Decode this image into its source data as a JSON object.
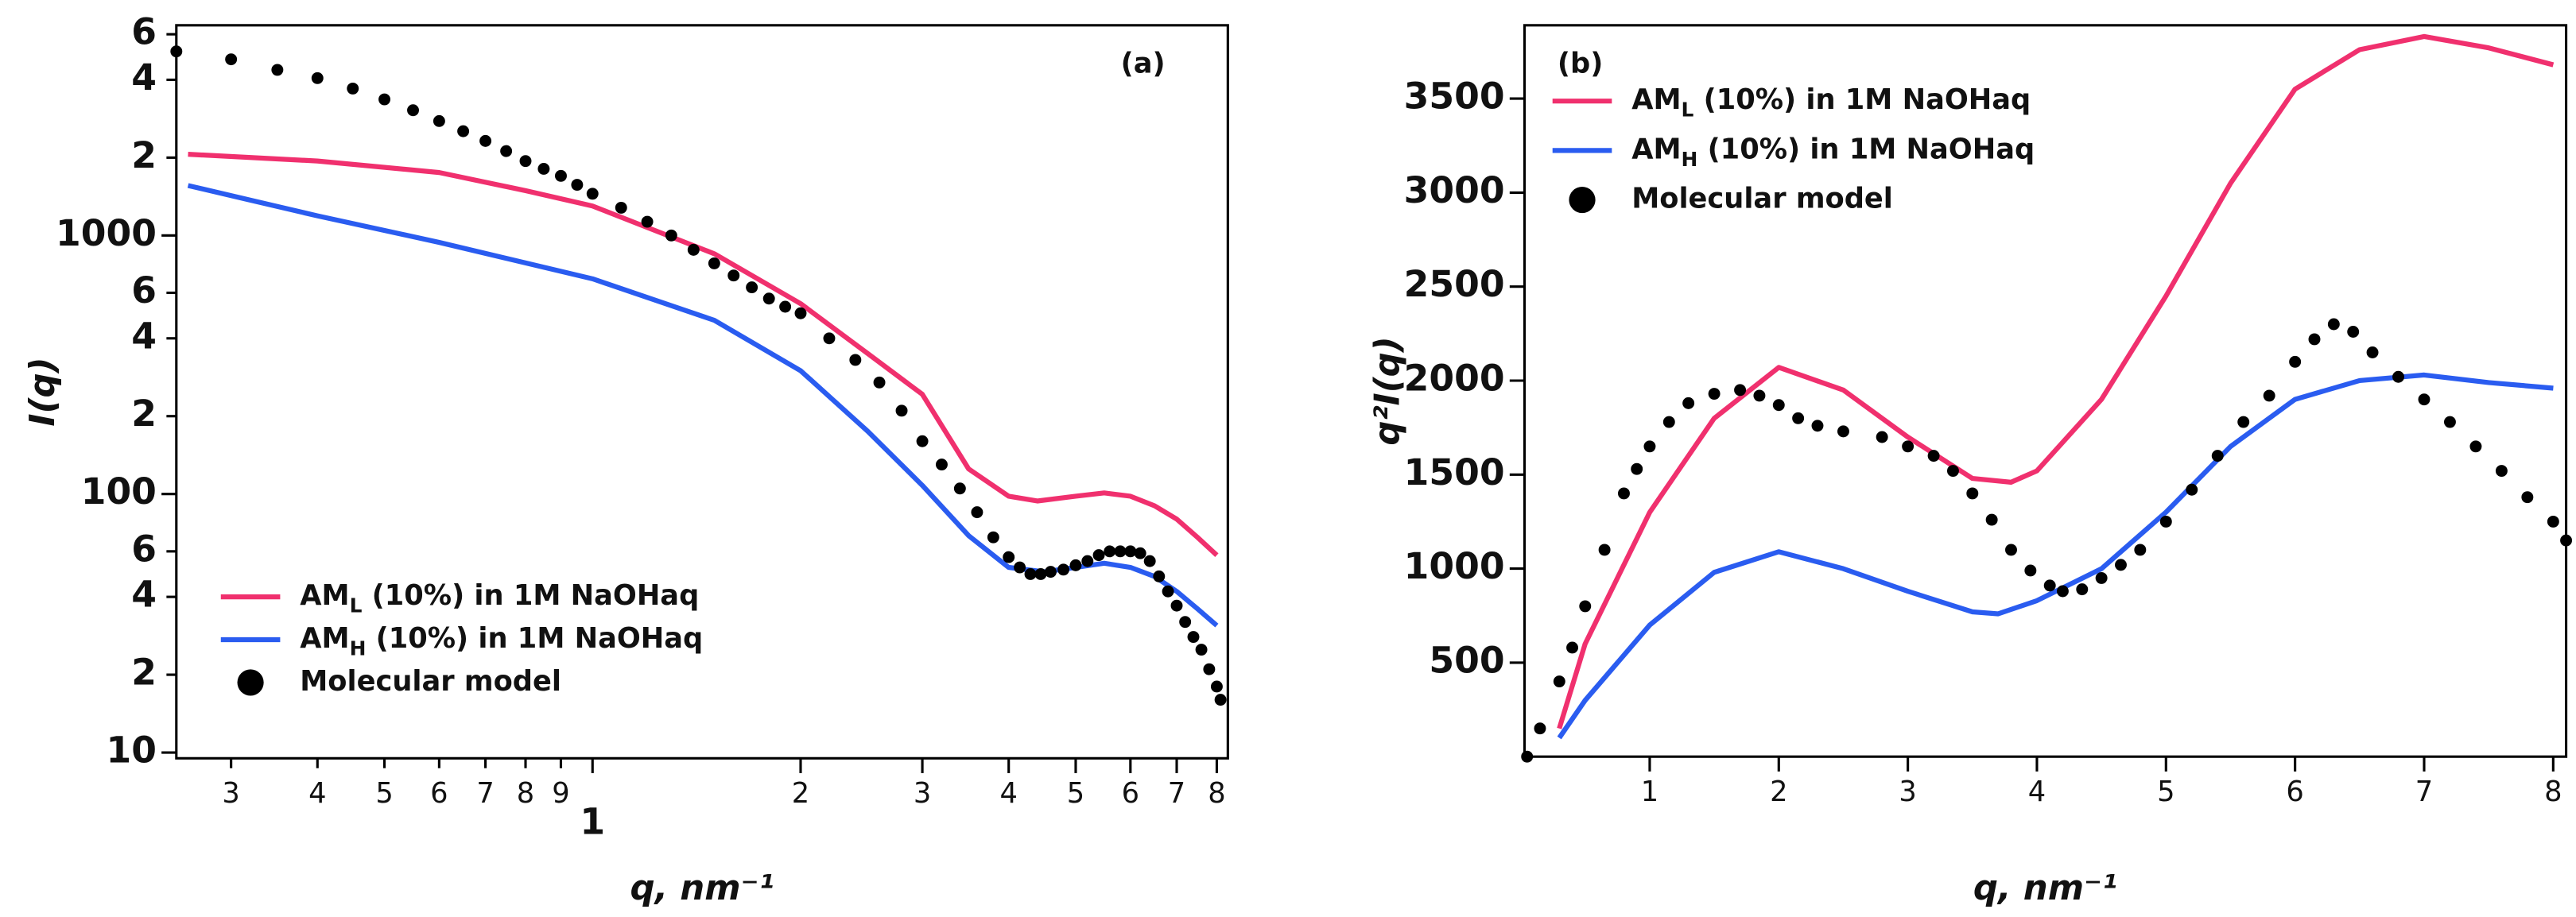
{
  "chart_data": [
    {
      "type": "line",
      "panel": "(a)",
      "ylabel": "I(q)",
      "xlabel": "q, nm⁻¹",
      "xscale": "log",
      "yscale": "log",
      "xlim": [
        0.25,
        8.3
      ],
      "ylim": [
        9.5,
        6500
      ],
      "xticks": [
        {
          "value": 0.3,
          "label": "3"
        },
        {
          "value": 0.4,
          "label": "4"
        },
        {
          "value": 0.5,
          "label": "5"
        },
        {
          "value": 0.6,
          "label": "6"
        },
        {
          "value": 0.7,
          "label": "7"
        },
        {
          "value": 0.8,
          "label": "8"
        },
        {
          "value": 0.9,
          "label": "9"
        },
        1,
        2,
        3,
        4,
        5,
        6,
        7,
        8
      ],
      "yticks": [
        10,
        {
          "value": 20,
          "label": "2"
        },
        {
          "value": 40,
          "label": "4"
        },
        {
          "value": 60,
          "label": "6"
        },
        100,
        {
          "value": 200,
          "label": "2"
        },
        {
          "value": 400,
          "label": "4"
        },
        {
          "value": 600,
          "label": "6"
        },
        1000,
        {
          "value": 2000,
          "label": "2"
        },
        {
          "value": 4000,
          "label": "4"
        },
        {
          "value": 6000,
          "label": "6"
        }
      ],
      "legend": "lower left",
      "series": [
        {
          "name": "AML (10%) in 1M NaOHaq",
          "color": "#f0306e",
          "style": "line",
          "x": [
            0.26,
            0.4,
            0.6,
            0.8,
            1,
            1.5,
            2,
            2.5,
            3,
            3.5,
            4,
            4.4,
            5,
            5.5,
            6,
            6.5,
            7,
            7.5,
            8
          ],
          "values": [
            2060,
            1940,
            1750,
            1490,
            1300,
            850,
            545,
            350,
            243,
            125,
            98,
            94,
            98,
            101,
            98,
            90,
            80,
            68,
            58
          ]
        },
        {
          "name": "AMH (10%) in 1M NaOHaq",
          "color": "#2a5cf0",
          "style": "line",
          "x": [
            0.26,
            0.4,
            0.6,
            1,
            1.5,
            2,
            2.5,
            3,
            3.5,
            4,
            4.5,
            5,
            5.5,
            6,
            6.5,
            7,
            7.5,
            8
          ],
          "values": [
            1560,
            1190,
            940,
            680,
            470,
            300,
            175,
            108,
            69,
            52,
            50,
            52,
            54,
            52,
            48,
            42,
            36,
            31
          ]
        },
        {
          "name": "Molecular model",
          "color": "#000000",
          "style": "dots",
          "x": [
            0.25,
            0.3,
            0.35,
            0.4,
            0.45,
            0.5,
            0.55,
            0.6,
            0.65,
            0.7,
            0.75,
            0.8,
            0.85,
            0.9,
            0.95,
            1,
            1.1,
            1.2,
            1.3,
            1.4,
            1.5,
            1.6,
            1.7,
            1.8,
            1.9,
            2,
            2.2,
            2.4,
            2.6,
            2.8,
            3,
            3.2,
            3.4,
            3.6,
            3.8,
            4,
            4.15,
            4.3,
            4.45,
            4.6,
            4.8,
            5,
            5.2,
            5.4,
            5.6,
            5.8,
            6,
            6.2,
            6.4,
            6.6,
            6.8,
            7,
            7.2,
            7.4,
            7.6,
            7.8,
            8,
            8.1
          ],
          "values": [
            5150,
            4800,
            4370,
            4060,
            3700,
            3360,
            3050,
            2770,
            2530,
            2320,
            2120,
            1940,
            1810,
            1700,
            1570,
            1450,
            1280,
            1130,
            1000,
            880,
            780,
            700,
            630,
            570,
            530,
            500,
            400,
            330,
            270,
            210,
            160,
            130,
            105,
            85,
            68,
            57,
            52,
            49,
            49,
            50,
            51,
            53,
            55,
            58,
            60,
            60,
            60,
            59,
            55,
            48,
            42,
            37,
            32,
            28,
            25,
            21,
            18,
            16
          ]
        }
      ]
    },
    {
      "type": "line",
      "panel": "(b)",
      "ylabel": "q²I(q)",
      "xlabel": "q, nm⁻¹",
      "xlim": [
        0.03,
        8.1
      ],
      "ylim": [
        0,
        3890
      ],
      "xticks": [
        1,
        2,
        3,
        4,
        5,
        6,
        7,
        8
      ],
      "yticks": [
        500,
        1000,
        1500,
        2000,
        2500,
        3000,
        3500
      ],
      "legend": "upper left",
      "series": [
        {
          "name": "AML (10%) in 1M NaOHaq",
          "color": "#f0306e",
          "style": "line",
          "x": [
            0.3,
            0.5,
            1,
            1.5,
            2,
            2.5,
            3,
            3.5,
            3.8,
            4,
            4.5,
            5,
            5.5,
            6,
            6.5,
            7,
            7.5,
            8
          ],
          "values": [
            150,
            600,
            1300,
            1800,
            2070,
            1950,
            1700,
            1480,
            1460,
            1520,
            1900,
            2450,
            3050,
            3550,
            3760,
            3830,
            3770,
            3680
          ]
        },
        {
          "name": "AMH (10%) in 1M NaOHaq",
          "color": "#2a5cf0",
          "style": "line",
          "x": [
            0.3,
            0.5,
            1,
            1.5,
            2,
            2.5,
            3,
            3.5,
            3.7,
            4,
            4.5,
            5,
            5.5,
            6,
            6.5,
            7,
            7.5,
            8
          ],
          "values": [
            100,
            300,
            700,
            980,
            1090,
            1000,
            880,
            770,
            760,
            830,
            1000,
            1300,
            1650,
            1900,
            2000,
            2030,
            1990,
            1960
          ]
        },
        {
          "name": "Molecular model",
          "color": "#000000",
          "style": "dots",
          "x": [
            0.05,
            0.15,
            0.3,
            0.4,
            0.5,
            0.65,
            0.8,
            0.9,
            1,
            1.15,
            1.3,
            1.5,
            1.7,
            1.85,
            2,
            2.15,
            2.3,
            2.5,
            2.8,
            3,
            3.2,
            3.35,
            3.5,
            3.65,
            3.8,
            3.95,
            4.1,
            4.2,
            4.35,
            4.5,
            4.65,
            4.8,
            5,
            5.2,
            5.4,
            5.6,
            5.8,
            6,
            6.15,
            6.3,
            6.45,
            6.6,
            6.8,
            7,
            7.2,
            7.4,
            7.6,
            7.8,
            8,
            8.1
          ],
          "values": [
            0,
            150,
            400,
            580,
            800,
            1100,
            1400,
            1530,
            1650,
            1780,
            1880,
            1930,
            1950,
            1920,
            1870,
            1800,
            1760,
            1730,
            1700,
            1650,
            1600,
            1520,
            1400,
            1260,
            1100,
            990,
            910,
            880,
            890,
            950,
            1020,
            1100,
            1250,
            1420,
            1600,
            1780,
            1920,
            2100,
            2220,
            2300,
            2260,
            2150,
            2020,
            1900,
            1780,
            1650,
            1520,
            1380,
            1250,
            1150
          ]
        }
      ]
    }
  ]
}
